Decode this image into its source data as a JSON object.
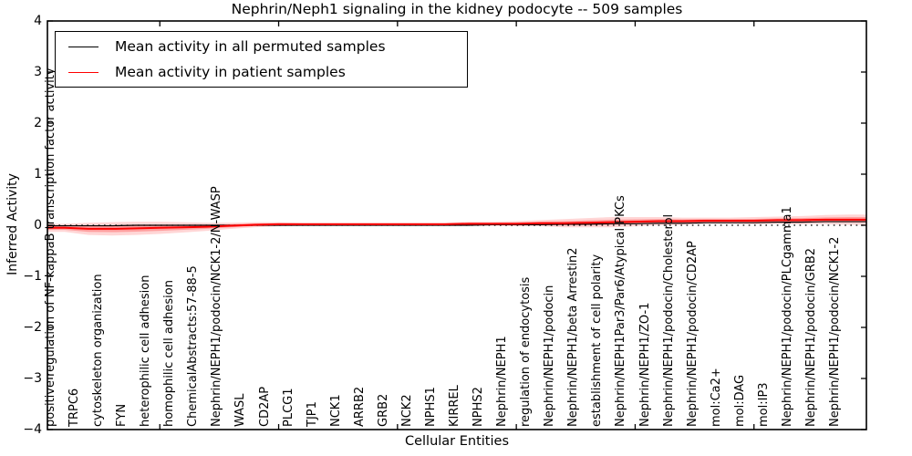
{
  "title": "Nephrin/Neph1 signaling in the kidney podocyte -- 509 samples",
  "axes": {
    "xlabel": "Cellular Entities",
    "ylabel": "Inferred Activity"
  },
  "legend": {
    "entries": [
      {
        "label": "Mean activity in all permuted samples",
        "color": "#000000"
      },
      {
        "label": "Mean activity in patient samples",
        "color": "#ff0000"
      }
    ]
  },
  "chart_data": {
    "type": "line",
    "title": "Nephrin/Neph1 signaling in the kidney podocyte -- 509 samples",
    "xlabel": "Cellular Entities",
    "ylabel": "Inferred Activity",
    "ylim": [
      -4,
      4
    ],
    "yticks": [
      4,
      3,
      2,
      1,
      0,
      -1,
      -2,
      -3,
      -4
    ],
    "zero_line": "dotted",
    "grid": false,
    "legend_position": "upper left",
    "categories": [
      "positive regulation of NF-kappaB transcription factor activity",
      "TRPC6",
      "cytoskeleton organization",
      "FYN",
      "heterophilic cell adhesion",
      "homophilic cell adhesion",
      "ChemicalAbstracts:57-88-5",
      "Nephrin/NEPH1/podocin/NCK1-2/N-WASP",
      "WASL",
      "CD2AP",
      "PLCG1",
      "TJP1",
      "NCK1",
      "ARRB2",
      "GRB2",
      "NCK2",
      "NPHS1",
      "KIRREL",
      "NPHS2",
      "Nephrin/NEPH1",
      "regulation of endocytosis",
      "Nephrin/NEPH1/podocin",
      "Nephrin/NEPH1/beta Arrestin2",
      "establishment of cell polarity",
      "Nephrin/NEPH1Par3/Par6/Atypical PKCs",
      "Nephrin/NEPH1/ZO-1",
      "Nephrin/NEPH1/podocin/Cholesterol",
      "Nephrin/NEPH1/podocin/CD2AP",
      "mol:Ca2+",
      "mol:DAG",
      "mol:IP3",
      "Nephrin/NEPH1/podocin/PLCgamma1",
      "Nephrin/NEPH1/podocin/GRB2",
      "Nephrin/NEPH1/podocin/NCK1-2"
    ],
    "xtick_entity_indices": [
      4,
      9,
      14,
      19,
      24,
      29
    ],
    "series": [
      {
        "name": "Mean activity in all permuted samples",
        "color": "#000000",
        "values": [
          -0.01,
          -0.01,
          -0.01,
          0,
          0,
          0,
          0,
          0,
          0,
          0,
          0,
          0,
          0,
          0,
          0,
          0,
          0,
          0,
          0.01,
          0.01,
          0.01,
          0.02,
          0.02,
          0.03,
          0.03,
          0.04,
          0.04,
          0.05,
          0.05,
          0.05,
          0.06,
          0.06,
          0.07,
          0.07
        ]
      },
      {
        "name": "Mean activity in patient samples",
        "color": "#ff0000",
        "values": [
          -0.05,
          -0.07,
          -0.07,
          -0.06,
          -0.05,
          -0.04,
          -0.03,
          -0.01,
          0.01,
          0.02,
          0.02,
          0.02,
          0.02,
          0.02,
          0.02,
          0.02,
          0.02,
          0.03,
          0.03,
          0.03,
          0.04,
          0.04,
          0.05,
          0.06,
          0.07,
          0.08,
          0.08,
          0.09,
          0.09,
          0.09,
          0.1,
          0.1,
          0.11,
          0.11
        ],
        "band_half_widths": [
          0.08,
          0.12,
          0.13,
          0.13,
          0.12,
          0.1,
          0.08,
          0.06,
          0.05,
          0.04,
          0.03,
          0.03,
          0.03,
          0.03,
          0.03,
          0.03,
          0.03,
          0.04,
          0.04,
          0.05,
          0.06,
          0.08,
          0.09,
          0.1,
          0.09,
          0.08,
          0.07,
          0.06,
          0.06,
          0.07,
          0.07,
          0.08,
          0.09,
          0.1
        ],
        "band_color": "#ff0000",
        "band_alpha": 0.16
      }
    ]
  }
}
